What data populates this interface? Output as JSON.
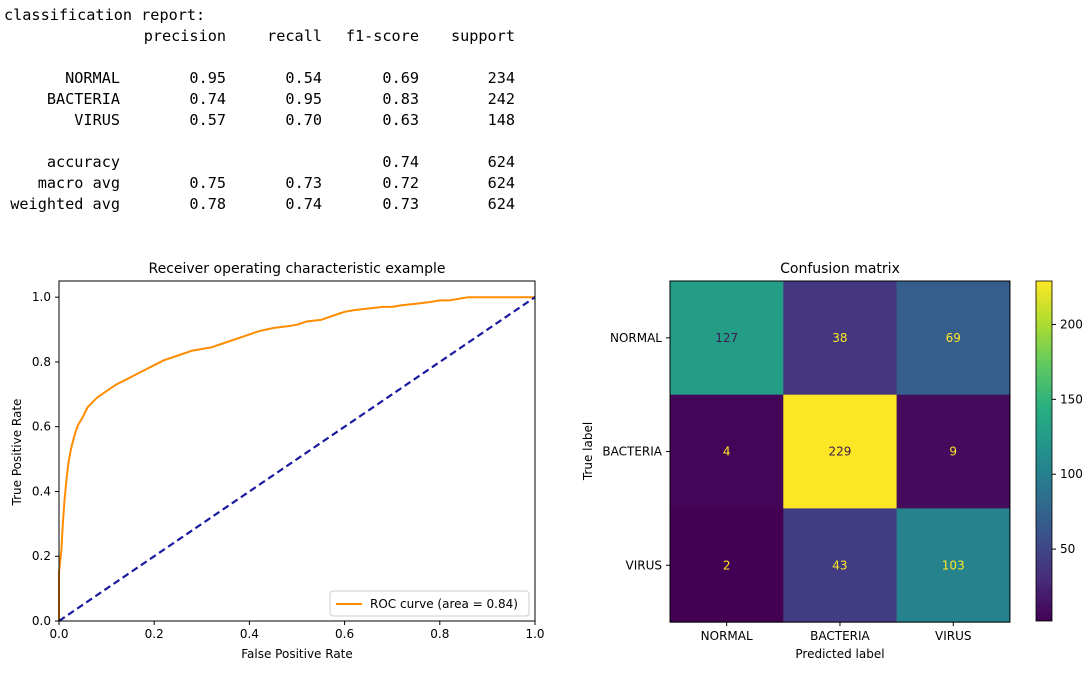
{
  "report": {
    "title": "classification report:",
    "headers": [
      "precision",
      "recall",
      "f1-score",
      "support"
    ],
    "rows": [
      {
        "label": "NORMAL",
        "precision": "0.95",
        "recall": "0.54",
        "f1": "0.69",
        "support": "234"
      },
      {
        "label": "BACTERIA",
        "precision": "0.74",
        "recall": "0.95",
        "f1": "0.83",
        "support": "242"
      },
      {
        "label": "VIRUS",
        "precision": "0.57",
        "recall": "0.70",
        "f1": "0.63",
        "support": "148"
      }
    ],
    "summary": [
      {
        "label": "accuracy",
        "precision": "",
        "recall": "",
        "f1": "0.74",
        "support": "624"
      },
      {
        "label": "macro avg",
        "precision": "0.75",
        "recall": "0.73",
        "f1": "0.72",
        "support": "624"
      },
      {
        "label": "weighted avg",
        "precision": "0.78",
        "recall": "0.74",
        "f1": "0.73",
        "support": "624"
      }
    ]
  },
  "chart_data": [
    {
      "type": "line",
      "title": "Receiver operating characteristic example",
      "xlabel": "False Positive Rate",
      "ylabel": "True Positive Rate",
      "xlim": [
        0.0,
        1.0
      ],
      "ylim": [
        0.0,
        1.05
      ],
      "xticks": [
        "0.0",
        "0.2",
        "0.4",
        "0.6",
        "0.8",
        "1.0"
      ],
      "yticks": [
        "0.0",
        "0.2",
        "0.4",
        "0.6",
        "0.8",
        "1.0"
      ],
      "legend_position": "bottom-right",
      "grid": false,
      "series": [
        {
          "name": "ROC curve (area = 0.84)",
          "color": "#ff8c00",
          "style": "solid",
          "x": [
            0.0,
            0.0,
            0.005,
            0.008,
            0.012,
            0.016,
            0.02,
            0.025,
            0.03,
            0.035,
            0.04,
            0.05,
            0.06,
            0.07,
            0.08,
            0.09,
            0.1,
            0.12,
            0.14,
            0.16,
            0.18,
            0.2,
            0.22,
            0.25,
            0.28,
            0.3,
            0.32,
            0.35,
            0.38,
            0.4,
            0.42,
            0.45,
            0.48,
            0.5,
            0.52,
            0.55,
            0.58,
            0.6,
            0.62,
            0.65,
            0.68,
            0.7,
            0.72,
            0.75,
            0.78,
            0.8,
            0.82,
            0.84,
            0.86,
            0.9,
            0.95,
            1.0
          ],
          "y": [
            0.0,
            0.15,
            0.22,
            0.3,
            0.38,
            0.44,
            0.49,
            0.53,
            0.56,
            0.585,
            0.605,
            0.63,
            0.66,
            0.675,
            0.69,
            0.7,
            0.71,
            0.73,
            0.745,
            0.76,
            0.775,
            0.79,
            0.805,
            0.82,
            0.835,
            0.84,
            0.845,
            0.86,
            0.875,
            0.885,
            0.895,
            0.905,
            0.91,
            0.915,
            0.925,
            0.93,
            0.945,
            0.955,
            0.96,
            0.965,
            0.97,
            0.97,
            0.975,
            0.98,
            0.985,
            0.99,
            0.99,
            0.995,
            1.0,
            1.0,
            1.0,
            1.0
          ]
        },
        {
          "name": "",
          "color": "#1a1aa0",
          "style": "dashed",
          "x": [
            0.0,
            1.0
          ],
          "y": [
            0.0,
            1.0
          ]
        }
      ]
    },
    {
      "type": "heatmap",
      "title": "Confusion matrix",
      "xlabel": "Predicted label",
      "ylabel": "True label",
      "x_categories": [
        "NORMAL",
        "BACTERIA",
        "VIRUS"
      ],
      "y_categories": [
        "NORMAL",
        "BACTERIA",
        "VIRUS"
      ],
      "values": [
        [
          127,
          38,
          69
        ],
        [
          4,
          229,
          9
        ],
        [
          2,
          43,
          103
        ]
      ],
      "colormap": "viridis",
      "vmin": 2,
      "vmax": 229,
      "colorbar_ticks": [
        "50",
        "100",
        "150",
        "200"
      ],
      "colorbar_tick_values": [
        50,
        100,
        150,
        200
      ]
    }
  ]
}
